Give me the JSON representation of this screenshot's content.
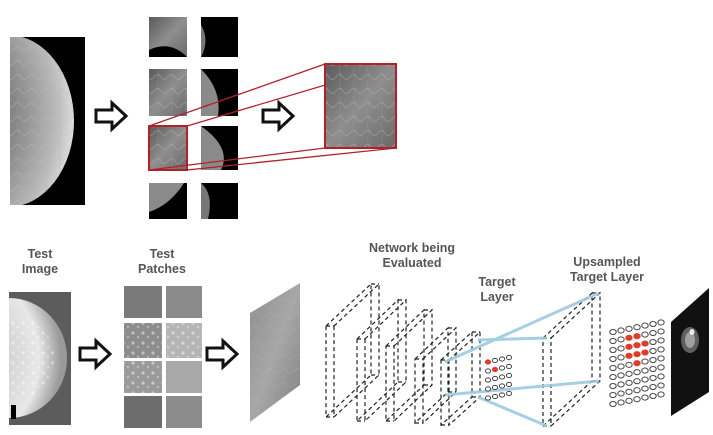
{
  "labels": {
    "test_image": [
      "Test",
      "Image"
    ],
    "test_patches": [
      "Test",
      "Patches"
    ],
    "network": "Network being",
    "network_line2": "Evaluated",
    "target_layer": [
      "Target",
      "Layer"
    ],
    "upsampled": [
      "Upsampled",
      "Target Layer"
    ]
  },
  "colors": {
    "highlight": "#b3202a",
    "connector": "#9ecae1",
    "active_node": "#e03c2c",
    "label_text": "#555555"
  },
  "icons": [
    "arrow-right-icon"
  ]
}
